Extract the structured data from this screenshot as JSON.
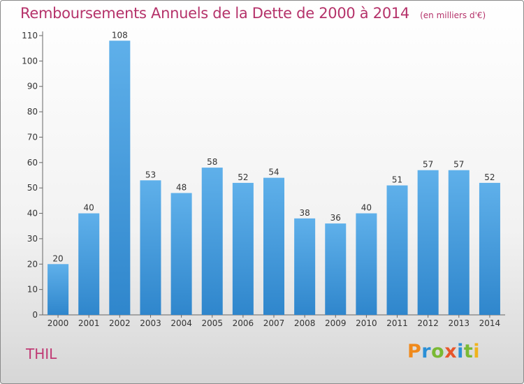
{
  "chart_data": {
    "type": "bar",
    "title": "Remboursements Annuels de la Dette de 2000 à 2014",
    "subtitle": "(en milliers d'€)",
    "xlabel": "",
    "ylabel": "",
    "categories": [
      "2000",
      "2001",
      "2002",
      "2003",
      "2004",
      "2005",
      "2006",
      "2007",
      "2008",
      "2009",
      "2010",
      "2011",
      "2012",
      "2013",
      "2014"
    ],
    "values": [
      20,
      40,
      108,
      53,
      48,
      58,
      52,
      54,
      38,
      36,
      40,
      51,
      57,
      57,
      52
    ],
    "ylim": [
      0,
      110
    ],
    "yticks": [
      0,
      10,
      20,
      30,
      40,
      50,
      60,
      70,
      80,
      90,
      100,
      110
    ],
    "grid": false,
    "legend": "none",
    "bar_color": "#4a9fdf"
  },
  "commune": "THIL",
  "logo": {
    "letters": [
      "P",
      "r",
      "o",
      "x",
      "i",
      "t",
      "i"
    ],
    "colors": [
      "#f08a1c",
      "#2a8fd6",
      "#7ab934",
      "#e8562a",
      "#2a8fd6",
      "#7ab934",
      "#f0b31c"
    ]
  }
}
